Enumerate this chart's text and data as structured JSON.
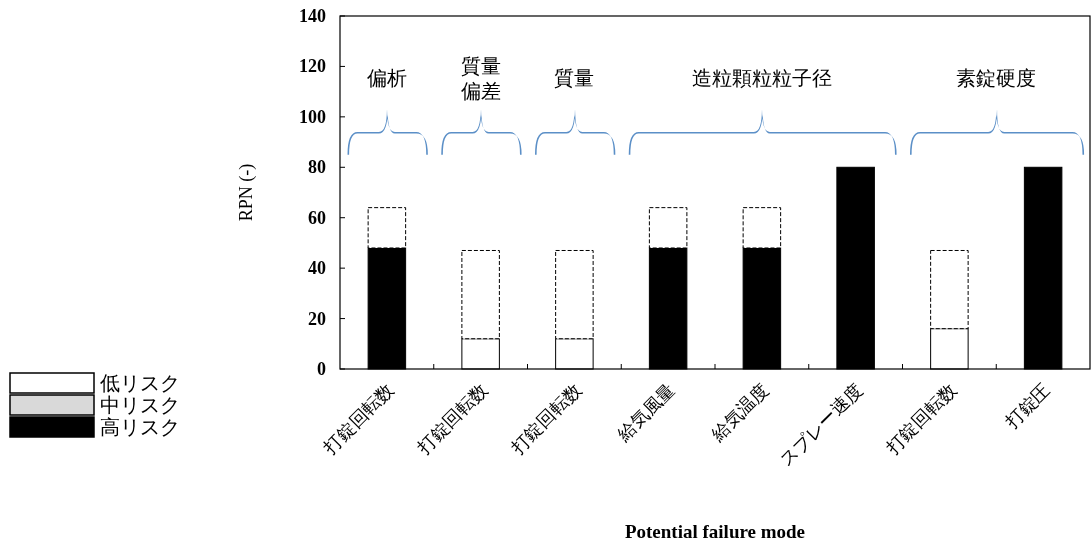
{
  "chart_data": {
    "type": "bar",
    "ylabel": "RPN (-)",
    "xlabel": "Potential failure mode",
    "categories": [
      "打錠回転数",
      "打錠回転数",
      "打錠回転数",
      "給気風量",
      "給気温度",
      "スプレー速度",
      "打錠回転数",
      "打錠圧"
    ],
    "stacked": true,
    "series": [
      {
        "name": "低リスク",
        "color": "#ffffff",
        "values": [
          null,
          12,
          12,
          null,
          null,
          null,
          16,
          null
        ]
      },
      {
        "name": "中リスク",
        "color": "#d9d9d9",
        "values": [
          null,
          null,
          null,
          null,
          null,
          null,
          null,
          null
        ]
      },
      {
        "name": "高リスク",
        "color": "#000000",
        "values": [
          48,
          null,
          null,
          48,
          48,
          80,
          null,
          80
        ]
      },
      {
        "color": "#ffffff",
        "line_style": "dashed",
        "values": [
          16,
          35,
          35,
          16,
          16,
          null,
          31,
          null
        ]
      }
    ],
    "ylim": [
      0,
      140
    ],
    "yticks": [
      0,
      20,
      40,
      60,
      80,
      100,
      120,
      140
    ],
    "grid": false,
    "legend": "bottom left",
    "annotations": [
      "偏析",
      "質量",
      "偏差",
      "質量",
      "造粒顆粒粒子径",
      "素錠硬度"
    ]
  }
}
